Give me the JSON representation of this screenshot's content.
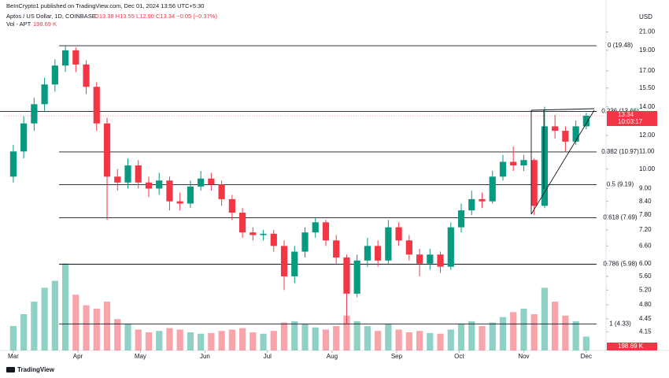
{
  "chart_data": {
    "type": "candlestick",
    "header": {
      "publisher": "BeInCrypto1 published on TradingView.com, Dec 01, 2024 13:56 UTC+5:30",
      "symbol": "Aptos / US Dollar, 1D, COINBASE",
      "ohlc": "O13.38 H13.55 L12.90 C13.34 −0.05 (−0.37%)",
      "volume_name": "Vol - APT",
      "volume_value": "198.69 K"
    },
    "currency": "USD",
    "logo": "TradingView",
    "log_scale": true,
    "up_color": "#089981",
    "down_color": "#f23645",
    "x": [
      0,
      5,
      10,
      15,
      20,
      25,
      30,
      35,
      40,
      45,
      50,
      55,
      60,
      65,
      70,
      75,
      80,
      85,
      90,
      95,
      100,
      105,
      110,
      115,
      120,
      125,
      130,
      135,
      140,
      145,
      150,
      155,
      160,
      165,
      170,
      175,
      180,
      185,
      190,
      195,
      200,
      205,
      210,
      215,
      220,
      225,
      230,
      235,
      240,
      245,
      250,
      255,
      260,
      265,
      270,
      275
    ],
    "open": [
      9.6,
      11.0,
      12.8,
      14.2,
      15.8,
      17.5,
      19.0,
      17.6,
      15.6,
      12.8,
      9.6,
      9.3,
      10.2,
      9.3,
      9.0,
      9.4,
      8.4,
      8.3,
      9.1,
      9.5,
      9.2,
      8.5,
      7.9,
      7.1,
      7.0,
      7.05,
      6.6,
      5.6,
      6.4,
      7.1,
      7.5,
      6.8,
      6.2,
      5.1,
      6.1,
      6.6,
      6.1,
      7.3,
      6.8,
      6.3,
      6.0,
      6.3,
      5.9,
      7.3,
      8.0,
      8.5,
      8.4,
      9.6,
      10.4,
      10.2,
      10.5,
      8.2,
      12.6,
      12.3,
      11.6,
      12.6
    ],
    "high": [
      11.4,
      13.3,
      14.7,
      16.4,
      18.1,
      19.48,
      19.3,
      18.0,
      16.0,
      13.2,
      10.0,
      10.6,
      10.5,
      9.6,
      9.8,
      9.6,
      8.8,
      9.4,
      9.9,
      9.8,
      9.4,
      8.7,
      8.1,
      7.3,
      7.2,
      7.2,
      6.8,
      6.6,
      7.3,
      7.7,
      7.6,
      7.0,
      6.3,
      6.3,
      6.9,
      6.8,
      7.6,
      7.5,
      7.0,
      6.5,
      6.5,
      6.4,
      7.5,
      8.3,
      8.9,
      8.8,
      9.9,
      10.8,
      11.3,
      10.8,
      10.6,
      14.0,
      13.4,
      12.6,
      13.0,
      13.55
    ],
    "low": [
      9.3,
      10.6,
      12.3,
      13.7,
      15.2,
      16.9,
      16.9,
      15.0,
      12.3,
      7.6,
      8.9,
      9.0,
      9.0,
      8.6,
      8.7,
      8.0,
      8.0,
      8.1,
      8.9,
      8.9,
      8.2,
      7.6,
      6.9,
      6.8,
      6.8,
      6.4,
      5.2,
      5.4,
      6.2,
      6.9,
      6.6,
      6.0,
      4.33,
      5.0,
      5.9,
      5.9,
      6.0,
      6.6,
      6.1,
      5.6,
      5.8,
      5.7,
      5.8,
      7.1,
      7.8,
      8.1,
      8.3,
      9.4,
      9.9,
      9.9,
      7.8,
      8.1,
      11.8,
      11.0,
      11.4,
      12.4
    ],
    "close": [
      11.0,
      12.8,
      14.2,
      15.8,
      17.5,
      19.0,
      17.6,
      15.6,
      12.8,
      9.6,
      9.3,
      10.2,
      9.3,
      9.0,
      9.4,
      8.4,
      8.3,
      9.1,
      9.5,
      9.2,
      8.5,
      7.9,
      7.1,
      7.0,
      7.05,
      6.6,
      5.6,
      6.4,
      7.1,
      7.5,
      6.8,
      6.2,
      5.1,
      6.1,
      6.6,
      6.1,
      7.3,
      6.8,
      6.3,
      6.0,
      6.3,
      5.9,
      7.3,
      8.0,
      8.5,
      8.4,
      9.6,
      10.4,
      10.2,
      10.5,
      8.2,
      12.6,
      12.3,
      11.6,
      12.6,
      13.34
    ],
    "volume": [
      350,
      520,
      700,
      900,
      1000,
      1250,
      800,
      650,
      600,
      700,
      450,
      380,
      300,
      260,
      280,
      320,
      300,
      260,
      240,
      250,
      280,
      300,
      320,
      260,
      240,
      280,
      400,
      420,
      380,
      330,
      300,
      350,
      500,
      420,
      350,
      280,
      380,
      300,
      260,
      280,
      250,
      240,
      300,
      380,
      420,
      350,
      400,
      480,
      550,
      600,
      520,
      900,
      700,
      500,
      420,
      198.69
    ],
    "vlim": [
      0,
      1300
    ],
    "last_price": 13.34,
    "countdown": "10:03:17",
    "xlim": [
      -4.5,
      284.5
    ],
    "xticks": [
      {
        "value": 0,
        "label": "Mar"
      },
      {
        "value": 31,
        "label": "Apr"
      },
      {
        "value": 61,
        "label": "May"
      },
      {
        "value": 92,
        "label": "Jun"
      },
      {
        "value": 122,
        "label": "Jul"
      },
      {
        "value": 153,
        "label": "Aug"
      },
      {
        "value": 184,
        "label": "Sep"
      },
      {
        "value": 214,
        "label": "Oct"
      },
      {
        "value": 245,
        "label": "Nov"
      },
      {
        "value": 275,
        "label": "Dec"
      }
    ],
    "ylim": [
      3.8,
      23.5
    ],
    "yticks": [
      {
        "value": 21,
        "label": "21.00"
      },
      {
        "value": 19,
        "label": "19.00"
      },
      {
        "value": 17,
        "label": "17.00"
      },
      {
        "value": 15.5,
        "label": "15.50"
      },
      {
        "value": 14,
        "label": "14.00"
      },
      {
        "value": 12,
        "label": "12.00"
      },
      {
        "value": 11,
        "label": "11.00"
      },
      {
        "value": 10,
        "label": "10.00"
      },
      {
        "value": 9,
        "label": "9.00"
      },
      {
        "value": 8.4,
        "label": "8.40"
      },
      {
        "value": 7.8,
        "label": "7.80"
      },
      {
        "value": 7.2,
        "label": "7.20"
      },
      {
        "value": 6.6,
        "label": "6.60"
      },
      {
        "value": 6,
        "label": "6.00"
      },
      {
        "value": 5.6,
        "label": "5.60"
      },
      {
        "value": 5.2,
        "label": "5.20"
      },
      {
        "value": 4.8,
        "label": "4.80"
      },
      {
        "value": 4.45,
        "label": "4.45"
      },
      {
        "value": 4.15,
        "label": "4.15"
      }
    ],
    "fib_levels": [
      {
        "value": 19.48,
        "label": "0 (19.48)"
      },
      {
        "value": 13.66,
        "label": "0.236 (13.66)"
      },
      {
        "value": 10.97,
        "label": "0.382 (10.97)"
      },
      {
        "value": 9.19,
        "label": "0.5 (9.19)"
      },
      {
        "value": 7.69,
        "label": "0.618 (7.69)"
      },
      {
        "value": 5.98,
        "label": "0.786 (5.98)"
      },
      {
        "value": 4.33,
        "label": "1 (4.33)"
      }
    ]
  }
}
